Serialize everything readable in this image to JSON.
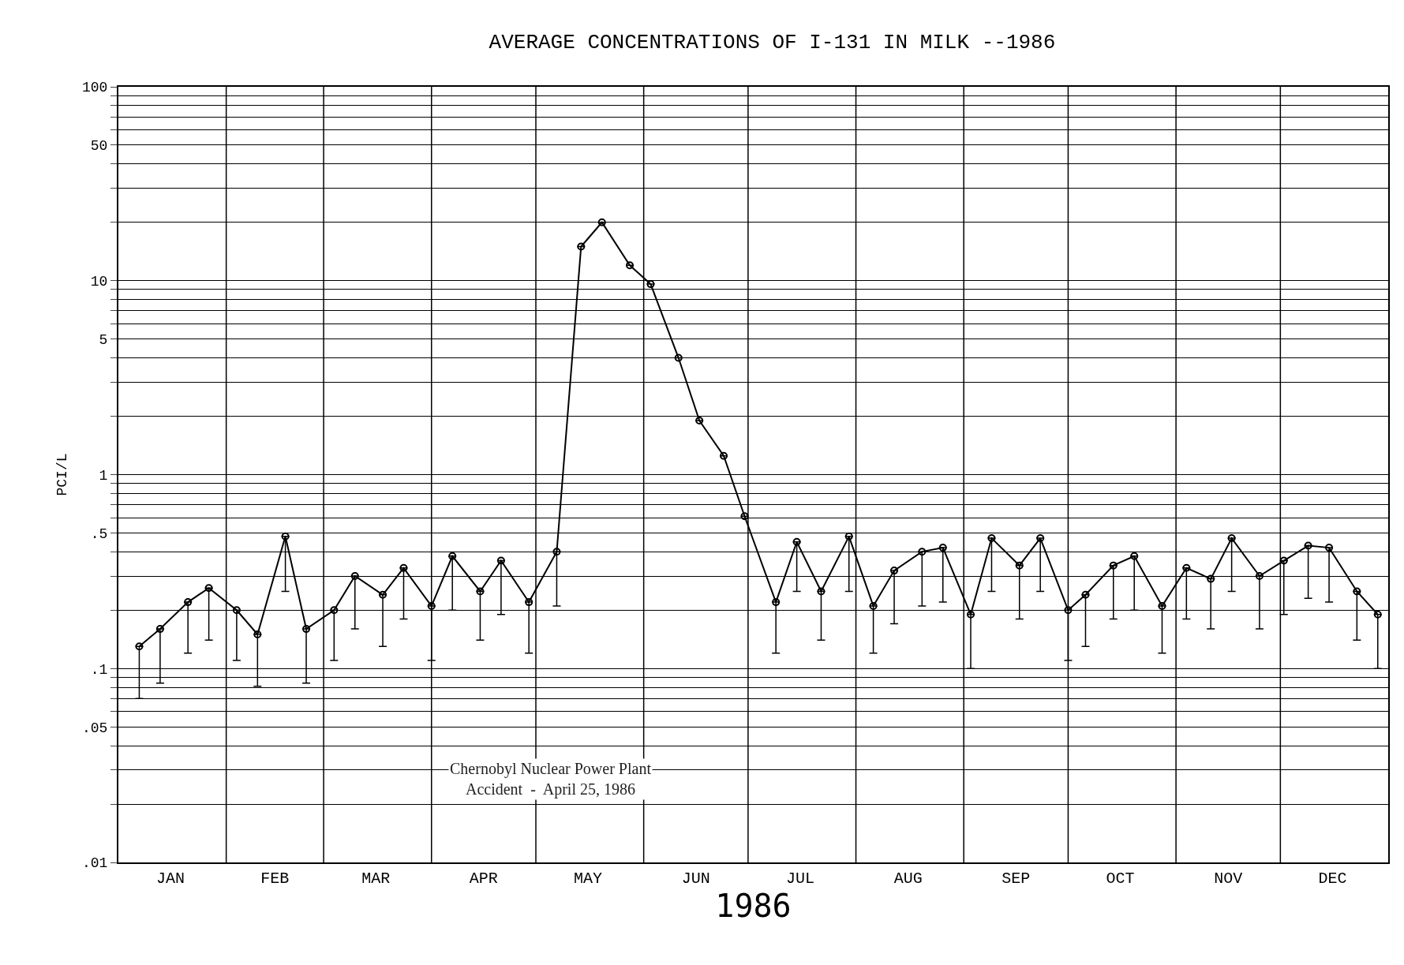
{
  "chart_data": {
    "type": "line",
    "title": "AVERAGE CONCENTRATIONS OF I-131 IN MILK --1986",
    "xlabel": "1986",
    "ylabel": "PCI/L",
    "annotations": [
      "Chernobyl Nuclear Power Plant\nAccident  -  April 25, 1986"
    ],
    "x": [
      "1986-01-07",
      "1986-01-13",
      "1986-01-21",
      "1986-01-27",
      "1986-02-04",
      "1986-02-10",
      "1986-02-18",
      "1986-02-24",
      "1986-03-04",
      "1986-03-10",
      "1986-03-18",
      "1986-03-24",
      "1986-04-01",
      "1986-04-07",
      "1986-04-15",
      "1986-04-21",
      "1986-04-29",
      "1986-05-07",
      "1986-05-14",
      "1986-05-20",
      "1986-05-28",
      "1986-06-03",
      "1986-06-11",
      "1986-06-17",
      "1986-06-24",
      "1986-06-30",
      "1986-07-09",
      "1986-07-15",
      "1986-07-22",
      "1986-07-30",
      "1986-08-06",
      "1986-08-12",
      "1986-08-20",
      "1986-08-26",
      "1986-09-03",
      "1986-09-09",
      "1986-09-17",
      "1986-09-23",
      "1986-10-01",
      "1986-10-06",
      "1986-10-14",
      "1986-10-20",
      "1986-10-28",
      "1986-11-04",
      "1986-11-11",
      "1986-11-17",
      "1986-11-25",
      "1986-12-02",
      "1986-12-09",
      "1986-12-15",
      "1986-12-23",
      "1986-12-29"
    ],
    "series": [
      {
        "color": "#000000",
        "values": [
          0.13,
          0.16,
          0.22,
          0.26,
          0.2,
          0.15,
          0.48,
          0.16,
          0.2,
          0.3,
          0.24,
          0.33,
          0.21,
          0.38,
          0.25,
          0.36,
          0.22,
          0.4,
          15,
          20,
          12,
          9.6,
          4.0,
          1.9,
          1.25,
          0.61,
          0.22,
          0.45,
          0.25,
          0.48,
          0.21,
          0.32,
          0.4,
          0.42,
          0.19,
          0.47,
          0.34,
          0.47,
          0.2,
          0.24,
          0.34,
          0.38,
          0.21,
          0.33,
          0.29,
          0.47,
          0.3,
          0.36,
          0.43,
          0.42,
          0.25,
          0.19
        ],
        "errors": [
          [
            0.07,
            0.13
          ],
          [
            0.084,
            0.16
          ],
          [
            0.12,
            0.22
          ],
          [
            0.14,
            0.26
          ],
          [
            0.11,
            0.2
          ],
          [
            0.081,
            0.15
          ],
          [
            0.25,
            0.48
          ],
          [
            0.084,
            0.16
          ],
          [
            0.11,
            0.2
          ],
          [
            0.16,
            0.3
          ],
          [
            0.13,
            0.24
          ],
          [
            0.18,
            0.33
          ],
          [
            0.11,
            0.21
          ],
          [
            0.2,
            0.38
          ],
          [
            0.14,
            0.25
          ],
          [
            0.19,
            0.36
          ],
          [
            0.12,
            0.22
          ],
          [
            0.21,
            0.4
          ],
          null,
          null,
          null,
          null,
          null,
          null,
          null,
          null,
          [
            0.12,
            0.22
          ],
          [
            0.25,
            0.45
          ],
          [
            0.14,
            0.25
          ],
          [
            0.25,
            0.48
          ],
          [
            0.12,
            0.21
          ],
          [
            0.17,
            0.32
          ],
          [
            0.21,
            0.4
          ],
          [
            0.22,
            0.42
          ],
          [
            0.1,
            0.19
          ],
          [
            0.25,
            0.47
          ],
          [
            0.18,
            0.34
          ],
          [
            0.25,
            0.47
          ],
          [
            0.11,
            0.2
          ],
          [
            0.13,
            0.24
          ],
          [
            0.18,
            0.34
          ],
          [
            0.2,
            0.38
          ],
          [
            0.12,
            0.21
          ],
          [
            0.18,
            0.33
          ],
          [
            0.16,
            0.29
          ],
          [
            0.25,
            0.47
          ],
          [
            0.16,
            0.3
          ],
          [
            0.19,
            0.36
          ],
          [
            0.23,
            0.43
          ],
          [
            0.22,
            0.42
          ],
          [
            0.14,
            0.25
          ],
          [
            0.1,
            0.19
          ]
        ]
      }
    ],
    "marker": "circle",
    "log": "y",
    "grid": true,
    "xlim": [
      "1986-01-01",
      "1987-01-01"
    ],
    "xticks": [
      {
        "value": "1986-01-16",
        "label": "JAN"
      },
      {
        "value": "1986-02-15",
        "label": "FEB"
      },
      {
        "value": "1986-03-16",
        "label": "MAR"
      },
      {
        "value": "1986-04-16",
        "label": "APR"
      },
      {
        "value": "1986-05-16",
        "label": "MAY"
      },
      {
        "value": "1986-06-16",
        "label": "JUN"
      },
      {
        "value": "1986-07-16",
        "label": "JUL"
      },
      {
        "value": "1986-08-16",
        "label": "AUG"
      },
      {
        "value": "1986-09-16",
        "label": "SEP"
      },
      {
        "value": "1986-10-16",
        "label": "OCT"
      },
      {
        "value": "1986-11-16",
        "label": "NOV"
      },
      {
        "value": "1986-12-16",
        "label": "DEC"
      },
      {
        "value": "1986-02-01",
        "label": null
      },
      {
        "value": "1986-03-01",
        "label": null
      },
      {
        "value": "1986-04-01",
        "label": null
      },
      {
        "value": "1986-05-01",
        "label": null
      },
      {
        "value": "1986-06-01",
        "label": null
      },
      {
        "value": "1986-07-01",
        "label": null
      },
      {
        "value": "1986-08-01",
        "label": null
      },
      {
        "value": "1986-09-01",
        "label": null
      },
      {
        "value": "1986-10-01",
        "label": null
      },
      {
        "value": "1986-11-01",
        "label": null
      },
      {
        "value": "1986-12-01",
        "label": null
      }
    ],
    "ylim": [
      0.01,
      100
    ],
    "yticks": [
      {
        "value": 0.01,
        "label": ".01"
      },
      {
        "value": 0.02,
        "label": null
      },
      {
        "value": 0.03,
        "label": null
      },
      {
        "value": 0.04,
        "label": null
      },
      {
        "value": 0.05,
        "label": ".05"
      },
      {
        "value": 0.06,
        "label": null
      },
      {
        "value": 0.07,
        "label": null
      },
      {
        "value": 0.08,
        "label": null
      },
      {
        "value": 0.09,
        "label": null
      },
      {
        "value": 0.1,
        "label": ".1"
      },
      {
        "value": 0.2,
        "label": null
      },
      {
        "value": 0.3,
        "label": null
      },
      {
        "value": 0.4,
        "label": null
      },
      {
        "value": 0.5,
        "label": ".5"
      },
      {
        "value": 0.6,
        "label": null
      },
      {
        "value": 0.7,
        "label": null
      },
      {
        "value": 0.8,
        "label": null
      },
      {
        "value": 0.9,
        "label": null
      },
      1,
      {
        "value": 2,
        "label": null
      },
      {
        "value": 3,
        "label": null
      },
      {
        "value": 4,
        "label": null
      },
      5,
      {
        "value": 6,
        "label": null
      },
      {
        "value": 7,
        "label": null
      },
      {
        "value": 8,
        "label": null
      },
      {
        "value": 9,
        "label": null
      },
      10,
      {
        "value": 20,
        "label": null
      },
      {
        "value": 30,
        "label": null
      },
      {
        "value": 40,
        "label": null
      },
      50,
      {
        "value": 60,
        "label": null
      },
      {
        "value": 70,
        "label": null
      },
      {
        "value": 80,
        "label": null
      },
      {
        "value": 90,
        "label": null
      },
      100
    ]
  }
}
